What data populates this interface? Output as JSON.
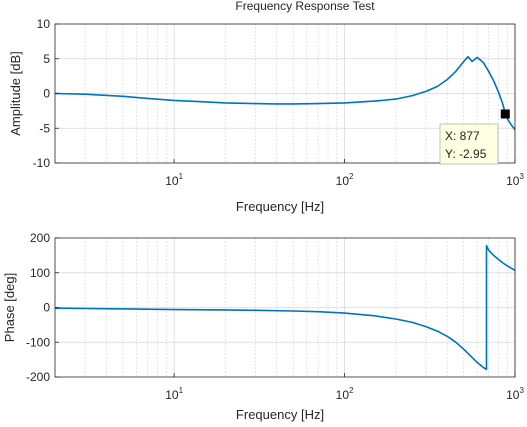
{
  "chart_data": [
    {
      "type": "line",
      "title": "Frequency Response Test",
      "xlabel": "Frequency [Hz]",
      "ylabel": "Amplitude [dB]",
      "xscale": "log",
      "xlim": [
        2,
        1000
      ],
      "ylim": [
        -10,
        10
      ],
      "xticks": [
        {
          "value": 10,
          "base": "10",
          "exp": "1"
        },
        {
          "value": 100,
          "base": "10",
          "exp": "2"
        },
        {
          "value": 1000,
          "base": "10",
          "exp": "3"
        }
      ],
      "yticks": [
        -10,
        -5,
        0,
        5,
        10
      ],
      "grid": true,
      "color": "#0072bd",
      "series": [
        {
          "x": [
            2,
            3,
            5,
            7,
            10,
            15,
            20,
            30,
            40,
            50,
            70,
            100,
            150,
            200,
            250,
            300,
            350,
            400,
            450,
            500,
            530,
            560,
            600,
            650,
            700,
            750,
            800,
            850,
            877,
            900,
            950,
            1000
          ],
          "y": [
            0,
            -0.1,
            -0.4,
            -0.7,
            -1.0,
            -1.2,
            -1.35,
            -1.45,
            -1.5,
            -1.5,
            -1.45,
            -1.35,
            -1.1,
            -0.8,
            -0.3,
            0.3,
            1.0,
            2.0,
            3.2,
            4.6,
            5.3,
            4.6,
            5.2,
            4.5,
            3.2,
            1.8,
            0.2,
            -1.6,
            -2.95,
            -3.6,
            -4.5,
            -5.2
          ]
        }
      ],
      "datatip": {
        "x_label": "X: 877",
        "y_label": "Y: -2.95",
        "x": 877,
        "y": -2.95
      }
    },
    {
      "type": "line",
      "xlabel": "Frequency [Hz]",
      "ylabel": "Phase [deg]",
      "xscale": "log",
      "xlim": [
        2,
        1000
      ],
      "ylim": [
        -200,
        200
      ],
      "xticks": [
        {
          "value": 10,
          "base": "10",
          "exp": "1"
        },
        {
          "value": 100,
          "base": "10",
          "exp": "2"
        },
        {
          "value": 1000,
          "base": "10",
          "exp": "3"
        }
      ],
      "yticks": [
        -200,
        -100,
        0,
        100,
        200
      ],
      "grid": true,
      "color": "#0072bd",
      "series": [
        {
          "x": [
            2,
            3,
            5,
            10,
            20,
            30,
            50,
            70,
            100,
            150,
            200,
            250,
            300,
            350,
            400,
            450,
            500,
            550,
            600,
            650,
            680,
            680,
            700,
            750,
            800,
            850,
            900,
            950,
            1000
          ],
          "y": [
            -2,
            -3,
            -4,
            -6,
            -7,
            -8,
            -10,
            -12,
            -16,
            -24,
            -33,
            -43,
            -55,
            -68,
            -83,
            -100,
            -120,
            -140,
            -158,
            -172,
            -178,
            178,
            165,
            150,
            138,
            128,
            120,
            113,
            107
          ]
        }
      ]
    }
  ]
}
